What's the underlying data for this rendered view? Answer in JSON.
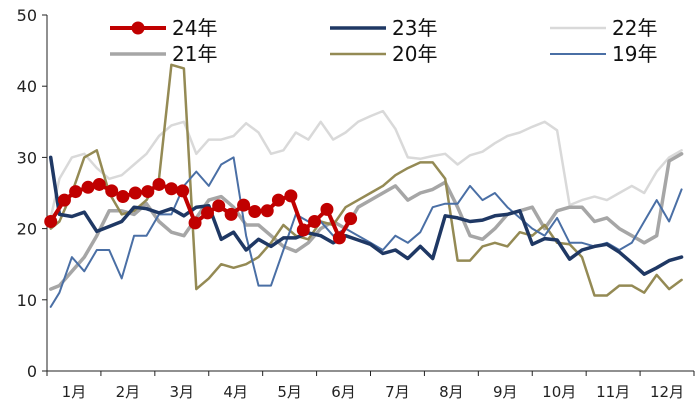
{
  "chart_data": {
    "type": "line",
    "title": "",
    "xlabel": "",
    "ylabel": "",
    "ylim": [
      0,
      50
    ],
    "yticks": [
      0,
      10,
      20,
      30,
      40,
      50
    ],
    "x_categories": [
      "1月",
      "2月",
      "3月",
      "4月",
      "5月",
      "6月",
      "7月",
      "8月",
      "9月",
      "10月",
      "11月",
      "12月"
    ],
    "x_range": [
      0,
      52
    ],
    "grid": false,
    "legend_position": "top",
    "series": [
      {
        "name": "24年",
        "color": "#c00000",
        "marker": "circle",
        "values": [
          [
            0.3,
            21
          ],
          [
            1.4,
            24
          ],
          [
            2.3,
            25.2
          ],
          [
            3.3,
            25.8
          ],
          [
            4.2,
            26.2
          ],
          [
            5.2,
            25.3
          ],
          [
            6.1,
            24.5
          ],
          [
            7.1,
            25
          ],
          [
            8.1,
            25.2
          ],
          [
            9.0,
            26.2
          ],
          [
            10.0,
            25.6
          ],
          [
            10.9,
            25.3
          ],
          [
            11.9,
            20.8
          ],
          [
            12.9,
            22.2
          ],
          [
            13.8,
            23.2
          ],
          [
            14.8,
            22
          ],
          [
            15.8,
            23.3
          ],
          [
            16.7,
            22.4
          ],
          [
            17.7,
            22.5
          ],
          [
            18.6,
            24
          ],
          [
            19.6,
            24.6
          ],
          [
            20.6,
            19.8
          ],
          [
            21.5,
            21
          ],
          [
            22.5,
            22.7
          ],
          [
            23.5,
            18.7
          ],
          [
            24.4,
            21.4
          ]
        ]
      },
      {
        "name": "23年",
        "color": "#1f3864",
        "marker": "",
        "values": [
          [
            0.3,
            30
          ],
          [
            1,
            22
          ],
          [
            2,
            21.7
          ],
          [
            3,
            22.3
          ],
          [
            4,
            19.6
          ],
          [
            5,
            20.3
          ],
          [
            6,
            21
          ],
          [
            7,
            23
          ],
          [
            8,
            22.8
          ],
          [
            9,
            22.2
          ],
          [
            10,
            22.8
          ],
          [
            11,
            21.8
          ],
          [
            12,
            23
          ],
          [
            13,
            23.2
          ],
          [
            14,
            18.5
          ],
          [
            15,
            19.5
          ],
          [
            16,
            17
          ],
          [
            17,
            18.5
          ],
          [
            18,
            17.5
          ],
          [
            19,
            18.7
          ],
          [
            20,
            18.7
          ],
          [
            21,
            19.4
          ],
          [
            22,
            19
          ],
          [
            23,
            18
          ],
          [
            24,
            19
          ],
          [
            25,
            18.4
          ],
          [
            26,
            17.8
          ],
          [
            27,
            16.5
          ],
          [
            28,
            17
          ],
          [
            29,
            15.8
          ],
          [
            30,
            17.5
          ],
          [
            31,
            15.8
          ],
          [
            32,
            21.8
          ],
          [
            33,
            21.5
          ],
          [
            34,
            21
          ],
          [
            35,
            21.2
          ],
          [
            36,
            21.8
          ],
          [
            37,
            22
          ],
          [
            38,
            22.5
          ],
          [
            39,
            17.8
          ],
          [
            40,
            18.6
          ],
          [
            41,
            18.4
          ],
          [
            42,
            15.7
          ],
          [
            43,
            17
          ],
          [
            44,
            17.5
          ],
          [
            45,
            17.8
          ],
          [
            46,
            16.7
          ],
          [
            47,
            15.2
          ],
          [
            48,
            13.6
          ],
          [
            49,
            14.5
          ],
          [
            50,
            15.5
          ],
          [
            51,
            16
          ]
        ]
      },
      {
        "name": "22年",
        "color": "#d9d9d9",
        "marker": "",
        "values": [
          [
            0.3,
            21.5
          ],
          [
            1,
            27
          ],
          [
            2,
            30
          ],
          [
            3,
            30.5
          ],
          [
            4,
            28.5
          ],
          [
            5,
            27
          ],
          [
            6,
            27.5
          ],
          [
            7,
            29
          ],
          [
            8,
            30.5
          ],
          [
            9,
            33
          ],
          [
            10,
            34.5
          ],
          [
            11,
            35
          ],
          [
            12,
            30.5
          ],
          [
            13,
            32.5
          ],
          [
            14,
            32.5
          ],
          [
            15,
            33
          ],
          [
            16,
            34.8
          ],
          [
            17,
            33.5
          ],
          [
            18,
            30.5
          ],
          [
            19,
            31
          ],
          [
            20,
            33.5
          ],
          [
            21,
            32.5
          ],
          [
            22,
            35
          ],
          [
            23,
            32.5
          ],
          [
            24,
            33.5
          ],
          [
            25,
            35
          ],
          [
            26,
            35.8
          ],
          [
            27,
            36.5
          ],
          [
            28,
            34
          ],
          [
            29,
            30
          ],
          [
            30,
            29.8
          ],
          [
            31,
            30.2
          ],
          [
            32,
            30.5
          ],
          [
            33,
            29
          ],
          [
            34,
            30.3
          ],
          [
            35,
            30.8
          ],
          [
            36,
            32
          ],
          [
            37,
            33
          ],
          [
            38,
            33.5
          ],
          [
            39,
            34.3
          ],
          [
            40,
            35
          ],
          [
            41,
            33.8
          ],
          [
            42,
            23.3
          ],
          [
            43,
            24
          ],
          [
            44,
            24.5
          ],
          [
            45,
            24
          ],
          [
            46,
            25
          ],
          [
            47,
            26
          ],
          [
            48,
            25
          ],
          [
            49,
            28
          ],
          [
            50,
            30
          ],
          [
            51,
            31
          ]
        ]
      },
      {
        "name": "21年",
        "color": "#a6a6a6",
        "marker": "",
        "values": [
          [
            0.3,
            11.5
          ],
          [
            1,
            12
          ],
          [
            2,
            14
          ],
          [
            3,
            16
          ],
          [
            4,
            19
          ],
          [
            5,
            22.5
          ],
          [
            6,
            22.5
          ],
          [
            7,
            22
          ],
          [
            8,
            23.5
          ],
          [
            9,
            21
          ],
          [
            10,
            19.5
          ],
          [
            11,
            19
          ],
          [
            12,
            21.5
          ],
          [
            13,
            24
          ],
          [
            14,
            24.5
          ],
          [
            15,
            23
          ],
          [
            16,
            20.5
          ],
          [
            17,
            20.5
          ],
          [
            18,
            19
          ],
          [
            19,
            17.5
          ],
          [
            20,
            16.8
          ],
          [
            21,
            18
          ],
          [
            22,
            20
          ],
          [
            23,
            21
          ],
          [
            24,
            20
          ],
          [
            25,
            23
          ],
          [
            26,
            24
          ],
          [
            27,
            25
          ],
          [
            28,
            26
          ],
          [
            29,
            24
          ],
          [
            30,
            25
          ],
          [
            31,
            25.5
          ],
          [
            32,
            26.5
          ],
          [
            33,
            23
          ],
          [
            34,
            19
          ],
          [
            35,
            18.5
          ],
          [
            36,
            20
          ],
          [
            37,
            22
          ],
          [
            38,
            22.5
          ],
          [
            39,
            23
          ],
          [
            40,
            20
          ],
          [
            41,
            22.5
          ],
          [
            42,
            23
          ],
          [
            43,
            23
          ],
          [
            44,
            21
          ],
          [
            45,
            21.5
          ],
          [
            46,
            20
          ],
          [
            47,
            19
          ],
          [
            48,
            18
          ],
          [
            49,
            19
          ],
          [
            50,
            29.5
          ],
          [
            51,
            30.5
          ]
        ]
      },
      {
        "name": "20年",
        "color": "#948a54",
        "marker": "",
        "values": [
          [
            0.3,
            20
          ],
          [
            1,
            21
          ],
          [
            2,
            25
          ],
          [
            3,
            30
          ],
          [
            4,
            31
          ],
          [
            5,
            25
          ],
          [
            6,
            22
          ],
          [
            7,
            22.5
          ],
          [
            8,
            24
          ],
          [
            9,
            27
          ],
          [
            10,
            43
          ],
          [
            11,
            42.5
          ],
          [
            12,
            11.5
          ],
          [
            13,
            13
          ],
          [
            14,
            15
          ],
          [
            15,
            14.5
          ],
          [
            16,
            15
          ],
          [
            17,
            16
          ],
          [
            18,
            18
          ],
          [
            19,
            20.5
          ],
          [
            20,
            19
          ],
          [
            21,
            18.5
          ],
          [
            22,
            21
          ],
          [
            23,
            20.5
          ],
          [
            24,
            23
          ],
          [
            25,
            24
          ],
          [
            26,
            25
          ],
          [
            27,
            26
          ],
          [
            28,
            27.5
          ],
          [
            29,
            28.5
          ],
          [
            30,
            29.3
          ],
          [
            31,
            29.3
          ],
          [
            32,
            27
          ],
          [
            33,
            15.5
          ],
          [
            34,
            15.5
          ],
          [
            35,
            17.5
          ],
          [
            36,
            18
          ],
          [
            37,
            17.5
          ],
          [
            38,
            19.5
          ],
          [
            39,
            19
          ],
          [
            40,
            20.5
          ],
          [
            41,
            18
          ],
          [
            42,
            17.8
          ],
          [
            43,
            16
          ],
          [
            44,
            10.6
          ],
          [
            45,
            10.6
          ],
          [
            46,
            12
          ],
          [
            47,
            12
          ],
          [
            48,
            11
          ],
          [
            49,
            13.5
          ],
          [
            50,
            11.5
          ],
          [
            51,
            12.8
          ]
        ]
      },
      {
        "name": "19年",
        "color": "#4a6fa5",
        "marker": "",
        "values": [
          [
            0.3,
            9
          ],
          [
            1,
            11
          ],
          [
            2,
            16
          ],
          [
            3,
            14
          ],
          [
            4,
            17
          ],
          [
            5,
            17
          ],
          [
            6,
            13
          ],
          [
            7,
            19
          ],
          [
            8,
            19
          ],
          [
            9,
            22
          ],
          [
            10,
            22
          ],
          [
            11,
            26
          ],
          [
            12,
            28
          ],
          [
            13,
            26
          ],
          [
            14,
            29
          ],
          [
            15,
            30
          ],
          [
            16,
            19
          ],
          [
            17,
            12
          ],
          [
            18,
            12
          ],
          [
            19,
            17
          ],
          [
            20,
            22
          ],
          [
            21,
            21
          ],
          [
            22,
            21
          ],
          [
            23,
            19
          ],
          [
            24,
            20
          ],
          [
            25,
            19
          ],
          [
            26,
            18
          ],
          [
            27,
            17
          ],
          [
            28,
            19
          ],
          [
            29,
            18
          ],
          [
            30,
            19.5
          ],
          [
            31,
            23
          ],
          [
            32,
            23.5
          ],
          [
            33,
            23.5
          ],
          [
            34,
            26
          ],
          [
            35,
            24
          ],
          [
            36,
            25
          ],
          [
            37,
            23
          ],
          [
            38,
            21.5
          ],
          [
            39,
            20
          ],
          [
            40,
            19
          ],
          [
            41,
            21.5
          ],
          [
            42,
            18
          ],
          [
            43,
            18
          ],
          [
            44,
            17.5
          ],
          [
            45,
            18
          ],
          [
            46,
            17
          ],
          [
            47,
            18
          ],
          [
            48,
            21
          ],
          [
            49,
            24
          ],
          [
            50,
            21
          ],
          [
            51,
            25.5
          ]
        ]
      }
    ]
  }
}
